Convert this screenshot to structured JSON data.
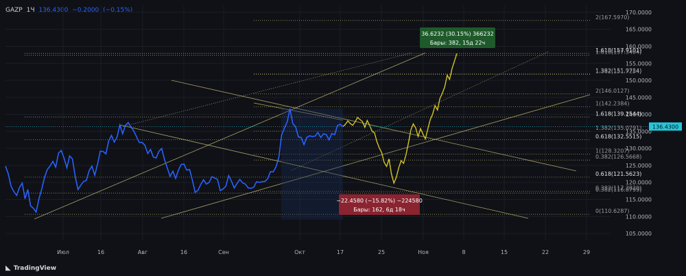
{
  "header": {
    "symbol": "GAZP",
    "interval": "1Ч",
    "price": "136.4300",
    "change": "−0.2000",
    "change_pct": "(−0.15%)"
  },
  "branding": {
    "logo_text": "TradingView"
  },
  "colors": {
    "bg": "#0f1117",
    "series": "#2962ff",
    "projection": "#d4c524",
    "fib": "#cfc67a",
    "up_box": "#1e5a2a",
    "down_box": "#8a2430",
    "price_tag": "#26c6da"
  },
  "chart_data": {
    "type": "line",
    "ylim": [
      103,
      172
    ],
    "xlabels": [
      "Июл",
      "16",
      "Авг",
      "16",
      "Сен",
      "Окт",
      "17",
      "25",
      "Ноя",
      "8",
      "15",
      "22",
      "29"
    ],
    "ylabels": [
      "170.0000",
      "165.0000",
      "160.0000",
      "155.0000",
      "150.0000",
      "145.0000",
      "140.0000",
      "135.0000",
      "130.0000",
      "125.0000",
      "120.0000",
      "115.0000",
      "110.0000",
      "105.0000"
    ],
    "last_price_label": "136.4300",
    "series": [
      {
        "values": [
          124.8,
          122.5,
          118.9,
          117.3,
          116.2,
          118.5,
          119.8,
          115.2,
          117.9,
          113.1,
          112.4,
          111.3,
          115.2,
          118.1,
          121.5,
          123.8,
          124.9,
          126.2,
          124.5,
          128.6,
          129.4,
          127.1,
          124.3,
          127.8,
          126.9,
          121.7,
          117.9,
          119.2,
          120.3,
          120.6,
          123.5,
          124.8,
          122.1,
          125.4,
          129.2,
          129.1,
          128.4,
          132.2,
          133.8,
          131.9,
          133.3,
          136.9,
          134.3,
          136.8,
          137.6,
          136.3,
          135.1,
          133.4,
          131.7,
          131.8,
          130.9,
          128.5,
          129.7,
          127.5,
          127.2,
          129.1,
          130.0,
          126.7,
          124.3,
          121.8,
          123.3,
          121.2,
          123.6,
          125.3,
          125.4,
          123.6,
          123.8,
          120.7,
          117.1,
          117.7,
          119.4,
          120.8,
          119.5,
          120.0,
          121.7,
          121.3,
          120.9,
          117.6,
          118.1,
          118.9,
          122.0,
          120.4,
          118.4,
          119.7,
          120.9,
          119.9,
          119.5,
          118.4,
          118.3,
          118.6,
          120.2,
          120.0,
          120.2,
          120.3,
          121.1,
          123.2,
          123.1,
          124.6,
          127.4,
          133.9,
          136.0,
          137.8,
          141.7,
          137.3,
          136.4,
          133.4,
          133.2,
          131.1,
          133.2,
          133.7,
          133.5,
          133.6,
          134.7,
          133.2,
          134.3,
          134.1,
          132.5,
          134.4,
          134.0,
          136.7,
          137.1,
          136.4
        ]
      },
      {
        "values": [
          136.4,
          137.1,
          138.1,
          137.3,
          136.8,
          137.8,
          139.1,
          138.5,
          137.9,
          136.2,
          138.2,
          136.7,
          135.1,
          134.6,
          132.0,
          130.1,
          128.7,
          125.9,
          124.7,
          126.9,
          122.5,
          119.8,
          121.5,
          124.3,
          126.4,
          125.6,
          128.1,
          131.6,
          135.4,
          137.2,
          136.0,
          133.5,
          135.8,
          134.2,
          132.8,
          135.7,
          138.4,
          140.1,
          142.6,
          141.3,
          144.7,
          146.2,
          148.1,
          151.5,
          150.3,
          153.4,
          155.7,
          157.9
        ]
      }
    ],
    "fib_levels": [
      "2(167.5970)",
      "1.618(157.9101)",
      "1.618(157.3404)",
      "1.382(151.9724)",
      "1.382(151.7254)",
      "2(146.0127)",
      "1(142.2384)",
      "1.618(139.2544)",
      "1.382(135.0791)",
      "0.618(132.5515)",
      "1(128.3207)",
      "0.382(126.5668)",
      "0.618(121.5623)",
      "0.382(117.3820)",
      "0.382(116.8799)",
      "0(110.6287)"
    ],
    "up_annotation": {
      "line1": "36.6232 (30.15%) 366232",
      "line2": "Бары: 382, 15д 22ч"
    },
    "down_annotation": {
      "line1": "−22.4580 (−15.82%) −224580",
      "line2": "Бары: 162, 6д 18ч"
    }
  }
}
